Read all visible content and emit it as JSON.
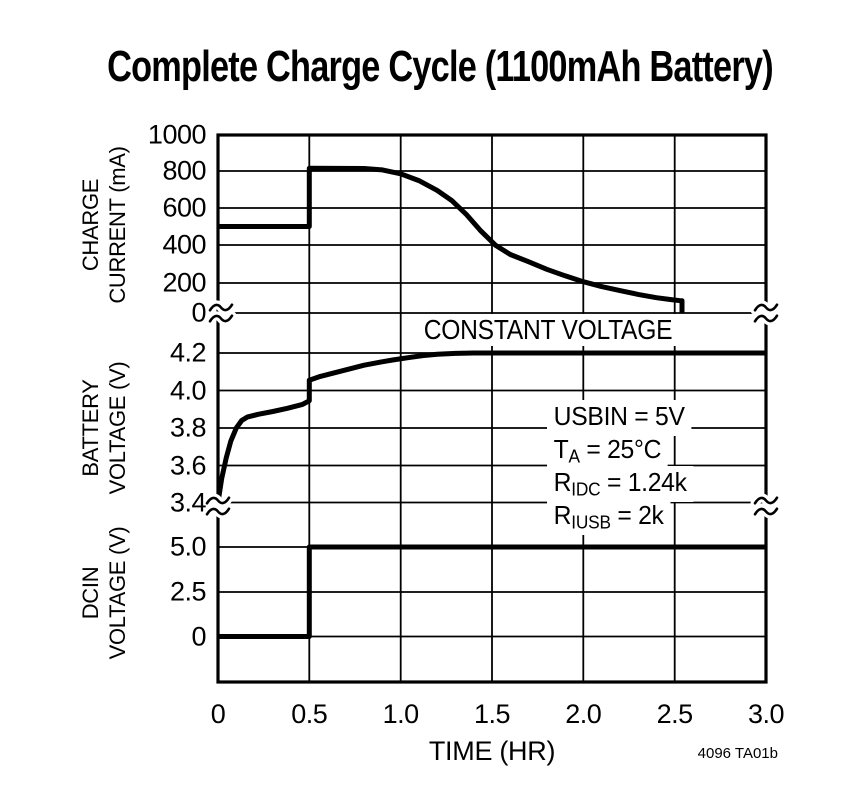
{
  "title": "Complete Charge Cycle (1100mAh Battery)",
  "figure_code": "4096 TA01b",
  "x_axis": {
    "label": "TIME (HR)",
    "tick_labels": [
      "0",
      "0.5",
      "1.0",
      "1.5",
      "2.0",
      "2.5",
      "3.0"
    ]
  },
  "panels": [
    {
      "id": "charge-current",
      "label_line1": "CHARGE",
      "label_line2": "CURRENT (mA)",
      "tick_labels": [
        "1000",
        "800",
        "600",
        "400",
        "200",
        "0"
      ]
    },
    {
      "id": "battery-voltage",
      "label_line1": "BATTERY",
      "label_line2": "VOLTAGE (V)",
      "tick_labels": [
        "4.2",
        "4.0",
        "3.8",
        "3.6",
        "3.4"
      ]
    },
    {
      "id": "dcin-voltage",
      "label_line1": "DCIN",
      "label_line2": "VOLTAGE (V)",
      "tick_labels": [
        "5.0",
        "2.5",
        "0"
      ]
    }
  ],
  "annotations": {
    "constant_voltage": "CONSTANT VOLTAGE",
    "conditions": [
      {
        "base": "USBIN",
        "sub": "",
        "rest": " = 5V"
      },
      {
        "base": "T",
        "sub": "A",
        "rest": " = 25°C"
      },
      {
        "base": "R",
        "sub": "IDC",
        "rest": " = 1.24k"
      },
      {
        "base": "R",
        "sub": "IUSB",
        "rest": " = 2k"
      }
    ]
  },
  "chart_data": {
    "type": "line",
    "title": "Complete Charge Cycle (1100mAh Battery)",
    "xlabel": "TIME (HR)",
    "xlim": [
      0,
      3
    ],
    "xticks": [
      0,
      0.5,
      1.0,
      1.5,
      2.0,
      2.5,
      3.0
    ],
    "grid": true,
    "conditions_text": [
      "USBIN = 5V",
      "TA = 25°C",
      "RIDC = 1.24k",
      "RIUSB = 2k"
    ],
    "panels": [
      {
        "name": "CHARGE CURRENT (mA)",
        "ylim": [
          0,
          1000
        ],
        "yticks": [
          1000,
          800,
          600,
          400,
          200,
          0
        ],
        "series": [
          {
            "name": "charge-current",
            "points": [
              [
                0,
                500
              ],
              [
                0.5,
                500
              ],
              [
                0.5,
                815
              ],
              [
                0.8,
                814
              ],
              [
                0.9,
                806
              ],
              [
                1.0,
                785
              ],
              [
                1.1,
                748
              ],
              [
                1.2,
                695
              ],
              [
                1.28,
                640
              ],
              [
                1.36,
                565
              ],
              [
                1.44,
                475
              ],
              [
                1.52,
                398
              ],
              [
                1.6,
                350
              ],
              [
                1.7,
                312
              ],
              [
                1.8,
                272
              ],
              [
                1.9,
                238
              ],
              [
                2.0,
                207
              ],
              [
                2.1,
                176
              ],
              [
                2.2,
                149
              ],
              [
                2.3,
                124
              ],
              [
                2.4,
                102
              ],
              [
                2.47,
                91
              ],
              [
                2.53,
                82
              ],
              [
                2.54,
                82
              ],
              [
                2.54,
                0
              ]
            ]
          }
        ]
      },
      {
        "name": "BATTERY VOLTAGE (V)",
        "ylim": [
          3.4,
          4.2
        ],
        "yticks": [
          4.2,
          4.0,
          3.8,
          3.6,
          3.4
        ],
        "annotation": "CONSTANT VOLTAGE",
        "series": [
          {
            "name": "battery-voltage",
            "points": [
              [
                0,
                3.4
              ],
              [
                0.02,
                3.53
              ],
              [
                0.045,
                3.64
              ],
              [
                0.07,
                3.73
              ],
              [
                0.1,
                3.8
              ],
              [
                0.13,
                3.84
              ],
              [
                0.16,
                3.858
              ],
              [
                0.22,
                3.873
              ],
              [
                0.3,
                3.888
              ],
              [
                0.38,
                3.905
              ],
              [
                0.46,
                3.925
              ],
              [
                0.5,
                3.945
              ],
              [
                0.5,
                4.055
              ],
              [
                0.56,
                4.075
              ],
              [
                0.64,
                4.095
              ],
              [
                0.72,
                4.115
              ],
              [
                0.8,
                4.135
              ],
              [
                0.88,
                4.15
              ],
              [
                0.96,
                4.163
              ],
              [
                1.04,
                4.175
              ],
              [
                1.12,
                4.186
              ],
              [
                1.2,
                4.193
              ],
              [
                1.3,
                4.198
              ],
              [
                1.4,
                4.2
              ],
              [
                3.0,
                4.2
              ]
            ]
          }
        ]
      },
      {
        "name": "DCIN VOLTAGE (V)",
        "ylim": [
          0,
          5
        ],
        "yticks": [
          5.0,
          2.5,
          0
        ],
        "series": [
          {
            "name": "dcin-voltage",
            "points": [
              [
                0,
                0
              ],
              [
                0.5,
                0
              ],
              [
                0.5,
                5
              ],
              [
                3.0,
                5
              ]
            ]
          }
        ]
      }
    ]
  }
}
